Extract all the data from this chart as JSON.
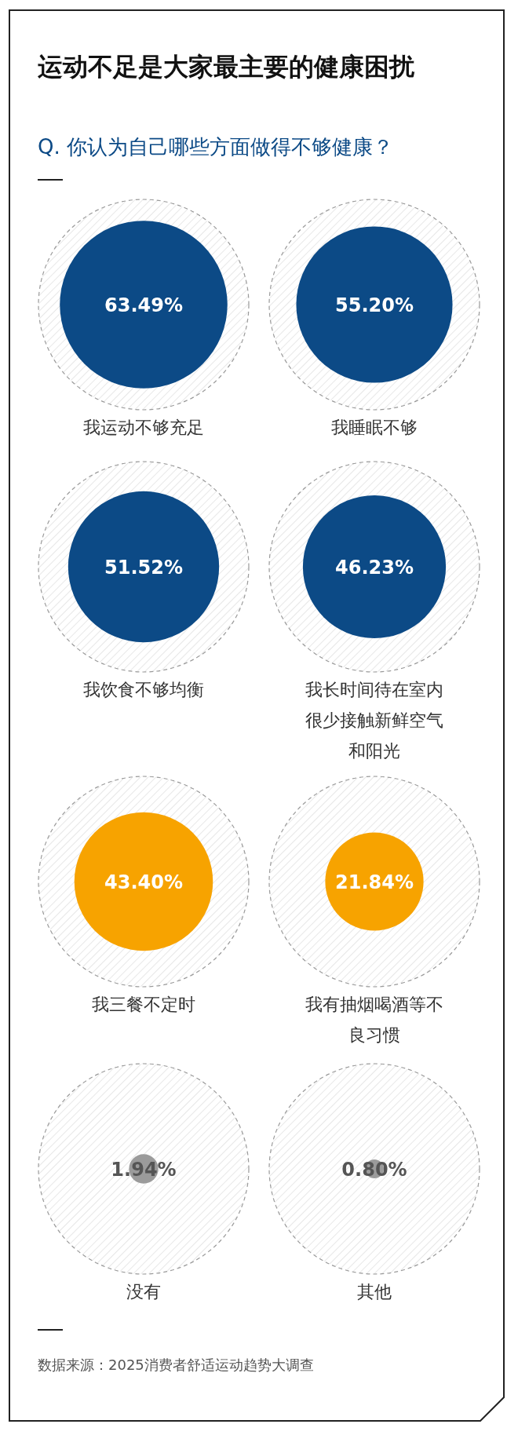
{
  "chart_data": {
    "type": "other",
    "title": "运动不足是大家最主要的健康困扰",
    "subtitle": "Q. 你认为自己哪些方面做得不够健康？",
    "categories": [
      "我运动不够充足",
      "我睡眠不够",
      "我饮食不够均衡",
      "我长时间待在室内很少接触新鲜空气和阳光",
      "我三餐不定时",
      "我有抽烟喝酒等不良习惯",
      "没有",
      "其他"
    ],
    "values": [
      63.49,
      55.2,
      51.52,
      46.23,
      43.4,
      21.84,
      1.94,
      0.8
    ],
    "value_labels": [
      "63.49%",
      "55.20%",
      "51.52%",
      "46.23%",
      "43.40%",
      "21.84%",
      "1.94%",
      "0.80%"
    ],
    "colors": [
      "#0c4a86",
      "#0c4a86",
      "#0c4a86",
      "#0c4a86",
      "#f7a300",
      "#f7a300",
      "#9b9b9b",
      "#9b9b9b"
    ],
    "annotations": [
      "数据来源：2025消费者舒适运动趋势大调查"
    ]
  }
}
